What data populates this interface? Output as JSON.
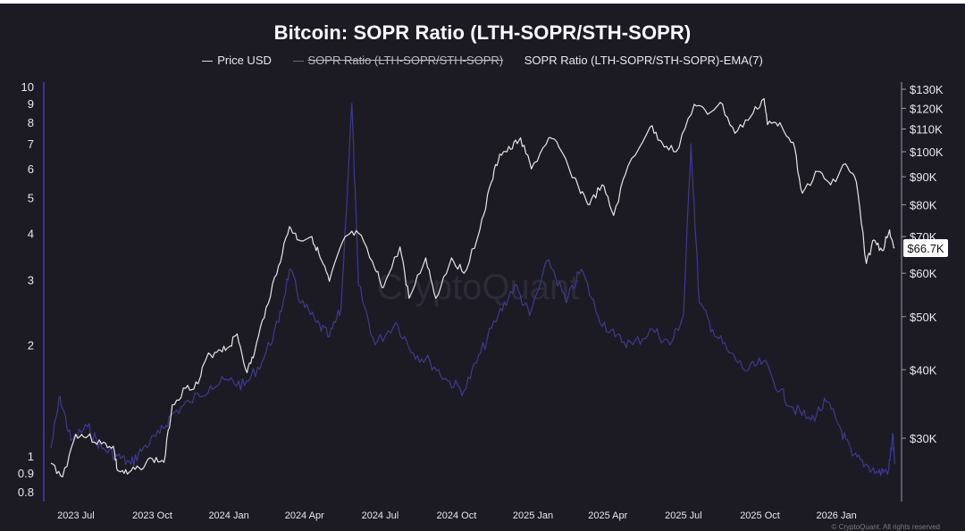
{
  "chart_data": {
    "type": "line",
    "title": "Bitcoin: SOPR Ratio (LTH-SOPR/STH-SOPR)",
    "legend": [
      "Price USD",
      "SOPR Ratio (LTH-SOPR/STH-SOPR)",
      "SOPR Ratio (LTH-SOPR/STH-SOPR)-EMA(7)"
    ],
    "legend_struck": [
      false,
      true,
      false
    ],
    "legend_placement": "top-center",
    "watermark": "CryptoQuant",
    "footer": "© CryptoQuant. All rights reserved",
    "x_range": [
      "2023-06-01",
      "2026-03-15"
    ],
    "x_ticks": [
      {
        "label": "2023 Jul",
        "date": "2023-07-01"
      },
      {
        "label": "2023 Oct",
        "date": "2023-10-01"
      },
      {
        "label": "2024 Jan",
        "date": "2024-01-01"
      },
      {
        "label": "2024 Apr",
        "date": "2024-04-01"
      },
      {
        "label": "2024 Jul",
        "date": "2024-07-01"
      },
      {
        "label": "2024 Oct",
        "date": "2024-10-01"
      },
      {
        "label": "2025 Jan",
        "date": "2025-01-01"
      },
      {
        "label": "2025 Apr",
        "date": "2025-04-01"
      },
      {
        "label": "2025 Jul",
        "date": "2025-07-01"
      },
      {
        "label": "2025 Oct",
        "date": "2025-10-01"
      },
      {
        "label": "2026 Jan",
        "date": "2026-01-01"
      }
    ],
    "left_axis": {
      "scale": "log",
      "range": [
        0.8,
        10
      ],
      "ticks": [
        {
          "label": "10",
          "value": 10
        },
        {
          "label": "9",
          "value": 9
        },
        {
          "label": "8",
          "value": 8
        },
        {
          "label": "7",
          "value": 7
        },
        {
          "label": "6",
          "value": 6
        },
        {
          "label": "5",
          "value": 5
        },
        {
          "label": "4",
          "value": 4
        },
        {
          "label": "3",
          "value": 3
        },
        {
          "label": "2",
          "value": 2
        },
        {
          "label": "1",
          "value": 1
        },
        {
          "label": "0.9",
          "value": 0.9
        },
        {
          "label": "0.8",
          "value": 0.8
        }
      ]
    },
    "right_axis": {
      "scale": "log",
      "range": [
        22000,
        130000
      ],
      "ticks": [
        {
          "label": "$130K",
          "value": 130000
        },
        {
          "label": "$120K",
          "value": 120000
        },
        {
          "label": "$110K",
          "value": 110000
        },
        {
          "label": "$100K",
          "value": 100000
        },
        {
          "label": "$90K",
          "value": 90000
        },
        {
          "label": "$80K",
          "value": 80000
        },
        {
          "label": "$70K",
          "value": 70000
        },
        {
          "label": "$60K",
          "value": 60000
        },
        {
          "label": "$50K",
          "value": 50000
        },
        {
          "label": "$40K",
          "value": 40000
        },
        {
          "label": "$30K",
          "value": 30000
        }
      ]
    },
    "current_price_label": "$66.7K",
    "current_price_value": 66700,
    "series": [
      {
        "name": "Price USD",
        "axis": "right",
        "color": "#e6e6e6",
        "points": [
          [
            "2023-06-01",
            27000
          ],
          [
            "2023-06-15",
            25500
          ],
          [
            "2023-07-01",
            30500
          ],
          [
            "2023-07-15",
            30200
          ],
          [
            "2023-08-01",
            29300
          ],
          [
            "2023-08-15",
            29000
          ],
          [
            "2023-08-20",
            26200
          ],
          [
            "2023-09-01",
            25800
          ],
          [
            "2023-09-15",
            26500
          ],
          [
            "2023-10-01",
            27500
          ],
          [
            "2023-10-15",
            27100
          ],
          [
            "2023-10-25",
            34500
          ],
          [
            "2023-11-10",
            37000
          ],
          [
            "2023-11-25",
            37700
          ],
          [
            "2023-12-05",
            42000
          ],
          [
            "2023-12-20",
            43500
          ],
          [
            "2024-01-01",
            44000
          ],
          [
            "2024-01-11",
            46500
          ],
          [
            "2024-01-23",
            39500
          ],
          [
            "2024-02-01",
            43000
          ],
          [
            "2024-02-15",
            52000
          ],
          [
            "2024-03-01",
            62000
          ],
          [
            "2024-03-14",
            73000
          ],
          [
            "2024-03-25",
            69000
          ],
          [
            "2024-04-10",
            70000
          ],
          [
            "2024-04-20",
            64000
          ],
          [
            "2024-05-01",
            58000
          ],
          [
            "2024-05-20",
            70000
          ],
          [
            "2024-06-05",
            71000
          ],
          [
            "2024-06-25",
            61000
          ],
          [
            "2024-07-05",
            56500
          ],
          [
            "2024-07-25",
            67000
          ],
          [
            "2024-08-05",
            54000
          ],
          [
            "2024-08-25",
            64000
          ],
          [
            "2024-09-06",
            54000
          ],
          [
            "2024-09-25",
            64000
          ],
          [
            "2024-10-10",
            60000
          ],
          [
            "2024-10-29",
            72000
          ],
          [
            "2024-11-12",
            88000
          ],
          [
            "2024-11-22",
            99000
          ],
          [
            "2024-12-05",
            101000
          ],
          [
            "2024-12-17",
            106000
          ],
          [
            "2024-12-30",
            93000
          ],
          [
            "2025-01-20",
            106000
          ],
          [
            "2025-02-01",
            102000
          ],
          [
            "2025-02-25",
            86000
          ],
          [
            "2025-03-10",
            80000
          ],
          [
            "2025-03-25",
            87000
          ],
          [
            "2025-04-08",
            76500
          ],
          [
            "2025-04-25",
            94000
          ],
          [
            "2025-05-22",
            111000
          ],
          [
            "2025-06-05",
            104000
          ],
          [
            "2025-06-22",
            100000
          ],
          [
            "2025-07-14",
            122000
          ],
          [
            "2025-07-30",
            117000
          ],
          [
            "2025-08-14",
            123000
          ],
          [
            "2025-09-01",
            108000
          ],
          [
            "2025-09-20",
            116000
          ],
          [
            "2025-10-06",
            125000
          ],
          [
            "2025-10-10",
            112000
          ],
          [
            "2025-10-25",
            113000
          ],
          [
            "2025-11-10",
            104000
          ],
          [
            "2025-11-21",
            84000
          ],
          [
            "2025-12-10",
            92000
          ],
          [
            "2025-12-25",
            87000
          ],
          [
            "2026-01-12",
            95000
          ],
          [
            "2026-01-25",
            88000
          ],
          [
            "2026-02-06",
            62500
          ],
          [
            "2026-02-15",
            69000
          ],
          [
            "2026-02-25",
            66000
          ],
          [
            "2026-03-06",
            72000
          ],
          [
            "2026-03-12",
            66700
          ]
        ]
      },
      {
        "name": "SOPR Ratio (LTH-SOPR/STH-SOPR)-EMA(7)",
        "axis": "left",
        "color": "#3e3a90",
        "points": [
          [
            "2023-06-01",
            1.05
          ],
          [
            "2023-06-12",
            1.45
          ],
          [
            "2023-06-25",
            1.1
          ],
          [
            "2023-07-15",
            1.2
          ],
          [
            "2023-08-01",
            1.05
          ],
          [
            "2023-08-20",
            1.0
          ],
          [
            "2023-09-05",
            0.95
          ],
          [
            "2023-09-20",
            1.05
          ],
          [
            "2023-10-10",
            1.15
          ],
          [
            "2023-10-25",
            1.3
          ],
          [
            "2023-11-15",
            1.4
          ],
          [
            "2023-12-10",
            1.55
          ],
          [
            "2024-01-01",
            1.6
          ],
          [
            "2024-01-20",
            1.55
          ],
          [
            "2024-02-10",
            1.8
          ],
          [
            "2024-03-01",
            2.3
          ],
          [
            "2024-03-14",
            3.2
          ],
          [
            "2024-03-28",
            2.6
          ],
          [
            "2024-04-15",
            2.3
          ],
          [
            "2024-05-01",
            2.1
          ],
          [
            "2024-05-15",
            2.5
          ],
          [
            "2024-05-28",
            9.0
          ],
          [
            "2024-06-05",
            2.9
          ],
          [
            "2024-06-25",
            2.0
          ],
          [
            "2024-07-20",
            2.3
          ],
          [
            "2024-08-10",
            1.9
          ],
          [
            "2024-08-30",
            1.8
          ],
          [
            "2024-09-20",
            1.6
          ],
          [
            "2024-10-10",
            1.5
          ],
          [
            "2024-10-30",
            1.9
          ],
          [
            "2024-11-20",
            2.4
          ],
          [
            "2024-12-10",
            2.9
          ],
          [
            "2024-12-28",
            2.4
          ],
          [
            "2025-01-20",
            3.4
          ],
          [
            "2025-02-10",
            2.6
          ],
          [
            "2025-02-28",
            3.2
          ],
          [
            "2025-03-20",
            2.4
          ],
          [
            "2025-04-10",
            2.1
          ],
          [
            "2025-05-01",
            2.0
          ],
          [
            "2025-05-25",
            2.2
          ],
          [
            "2025-06-15",
            2.0
          ],
          [
            "2025-07-01",
            2.4
          ],
          [
            "2025-07-10",
            7.0
          ],
          [
            "2025-07-20",
            2.6
          ],
          [
            "2025-08-05",
            2.2
          ],
          [
            "2025-08-25",
            1.9
          ],
          [
            "2025-09-15",
            1.7
          ],
          [
            "2025-10-05",
            1.8
          ],
          [
            "2025-10-25",
            1.5
          ],
          [
            "2025-11-10",
            1.35
          ],
          [
            "2025-12-01",
            1.25
          ],
          [
            "2025-12-20",
            1.4
          ],
          [
            "2026-01-05",
            1.2
          ],
          [
            "2026-01-20",
            1.0
          ],
          [
            "2026-02-05",
            0.95
          ],
          [
            "2026-02-20",
            0.9
          ],
          [
            "2026-03-05",
            0.92
          ],
          [
            "2026-03-10",
            1.15
          ],
          [
            "2026-03-12",
            0.95
          ]
        ]
      }
    ]
  }
}
